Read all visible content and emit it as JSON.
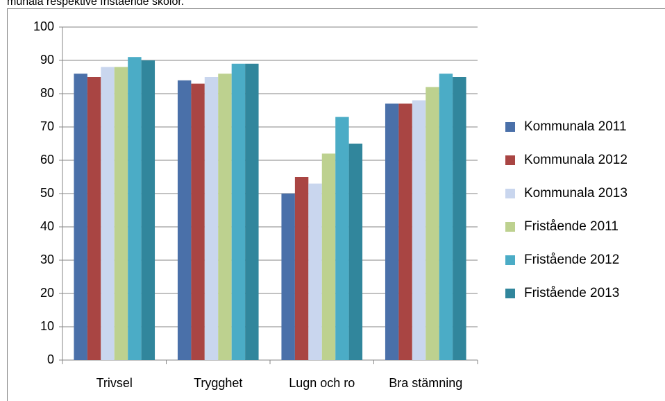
{
  "chart_data": {
    "type": "bar",
    "caption": "munala respektive fristående skolor.",
    "categories": [
      "Trivsel",
      "Trygghet",
      "Lugn och ro",
      "Bra stämning"
    ],
    "series": [
      {
        "name": "Kommunala 2011",
        "color": "#4a70a9",
        "values": [
          86,
          84,
          50,
          77
        ]
      },
      {
        "name": "Kommunala 2012",
        "color": "#a94543",
        "values": [
          85,
          83,
          55,
          77
        ]
      },
      {
        "name": "Kommunala 2013",
        "color": "#c9d6ee",
        "values": [
          88,
          85,
          53,
          78
        ]
      },
      {
        "name": "Fristående 2011",
        "color": "#bdd18f",
        "values": [
          88,
          86,
          62,
          82
        ]
      },
      {
        "name": "Fristående 2012",
        "color": "#4bacc6",
        "values": [
          91,
          89,
          73,
          86
        ]
      },
      {
        "name": "Fristående 2013",
        "color": "#31869c",
        "values": [
          90,
          89,
          65,
          85
        ]
      }
    ],
    "ylim": [
      0,
      100
    ],
    "yticks": [
      0,
      10,
      20,
      30,
      40,
      50,
      60,
      70,
      80,
      90,
      100
    ],
    "grid": true,
    "legend": "right"
  }
}
